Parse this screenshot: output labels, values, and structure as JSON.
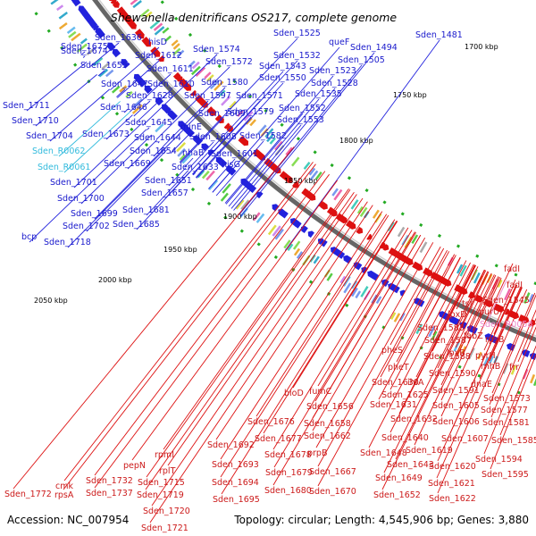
{
  "title": "Shewanella denitrificans OS217, complete genome",
  "footer": {
    "accession": "Accession: NC_007954",
    "stats": "Topology: circular; Length: 4,545,906 bp; Genes: 3,880"
  },
  "colors": {
    "forward": "#2222dd",
    "reverse": "#dd1111",
    "rna": "#33bbdd",
    "pseudo": "#ee88cc",
    "backbone": "#777777",
    "tick": "#22aa22"
  },
  "kbp_labels": [
    "1700 kbp",
    "1750 kbp",
    "1800 kbp",
    "1850 kbp",
    "1900 kbp",
    "1950 kbp",
    "2000 kbp",
    "2050 kbp"
  ],
  "forward_labels": [
    "Sden_1675",
    "Sden_1636",
    "hisD",
    "Sden_1674",
    "Sden_1612",
    "Sden_1574",
    "Sden_1525",
    "queF",
    "Sden_1494",
    "Sden_1481",
    "Sden_1655",
    "Sden_1611",
    "Sden_1572",
    "Sden_1532",
    "Sden_1505",
    "Sden_1543",
    "Sden_1523",
    "Sden_1647",
    "Sden_1610",
    "Sden_1580",
    "Sden_1550",
    "Sden_1528",
    "Sden_1628",
    "Sden_1597",
    "Sden_1571",
    "Sden_1535",
    "Sden_1711",
    "Sden_1646",
    "Sden_1609",
    "Sden_1579",
    "Sden_1552",
    "Sden_1710",
    "Sden_1645",
    "minE",
    "Sden_1553",
    "Sden_1704",
    "Sden_1673",
    "Sden_1644",
    "Sden_1608",
    "Sden_1582",
    "Sden_1654",
    "nhaB",
    "Sden_1601",
    "Sden_1669",
    "Sden_1633",
    "hisG",
    "Sden_1701",
    "Sden_1651",
    "Sden_1700",
    "Sden_1657",
    "Sden_1699",
    "Sden_1681",
    "Sden_1702",
    "Sden_1685",
    "bcp",
    "Sden_1718"
  ],
  "rna_labels": [
    "Sden_R0062",
    "Sden_R0061"
  ],
  "pseudo_labels": [
    "Sden_R0058"
  ],
  "reverse_labels": [
    "fadI",
    "fadJ",
    "tsf",
    "Sden_1545",
    "purU",
    "lpxD",
    "Sden_1583",
    "fabZ",
    "rpsB",
    "Sden_1587",
    "lpxB",
    "pyrH",
    "Sden_1588",
    "rnhB",
    "frr",
    "pheS",
    "Sden_1590",
    "dnaE",
    "pheT",
    "Sden_1591",
    "Sden_1573",
    "Sden_1630",
    "ihfA",
    "Sden_1577",
    "bioD",
    "fumC",
    "Sden_1625",
    "Sden_1605",
    "Sden_1581",
    "Sden_1656",
    "Sden_1631",
    "Sden_1632",
    "Sden_1606",
    "Sden_1676",
    "Sden_1658",
    "Sden_1640",
    "Sden_1607",
    "Sden_1585",
    "Sden_1677",
    "Sden_1662",
    "Sden_1619",
    "Sden_1692",
    "prpB",
    "Sden_1648",
    "Sden_1594",
    "rpmI",
    "Sden_1678",
    "Sden_1643",
    "Sden_1620",
    "Sden_1595",
    "pepN",
    "rplT",
    "Sden_1693",
    "Sden_1667",
    "Sden_1649",
    "Sden_1621",
    "Sden_1732",
    "Sden_1715",
    "Sden_1694",
    "Sden_1679",
    "cmk",
    "Sden_1737",
    "Sden_1719",
    "Sden_1680",
    "Sden_1670",
    "Sden_1652",
    "Sden_1622",
    "Sden_1772",
    "rpsA",
    "Sden_1695",
    "Sden_1720",
    "Sden_1721"
  ]
}
